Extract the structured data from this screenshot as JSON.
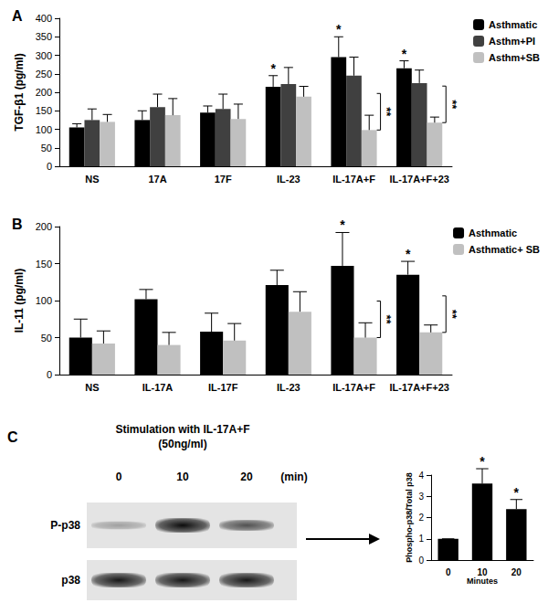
{
  "chart_data": [
    {
      "type": "bar",
      "title": "A",
      "categories": [
        "NS",
        "17A",
        "17F",
        "IL-23",
        "IL-17A+F",
        "IL-17A+F+23"
      ],
      "y_label": "TGF-β1 (pg/ml)",
      "ylim": [
        0,
        400
      ],
      "yticks": [
        0,
        50,
        100,
        150,
        200,
        250,
        300,
        350,
        400
      ],
      "grid": false,
      "legend": "upper right",
      "series": [
        {
          "name": "Asthmatic",
          "color": "#000000",
          "values": [
            105,
            125,
            145,
            215,
            295,
            265
          ],
          "errors": [
            10,
            25,
            18,
            30,
            55,
            20
          ]
        },
        {
          "name": "Asthm+PI",
          "color": "#404040",
          "values": [
            125,
            160,
            155,
            222,
            245,
            225
          ],
          "errors": [
            30,
            35,
            40,
            45,
            50,
            35
          ]
        },
        {
          "name": "Asthm+SB",
          "color": "#c0c0c0",
          "values": [
            120,
            138,
            128,
            188,
            98,
            118
          ],
          "errors": [
            20,
            45,
            40,
            28,
            40,
            15
          ]
        }
      ],
      "annotations": [
        {
          "text": "*",
          "series": "Asthmatic",
          "category": "IL-23"
        },
        {
          "text": "*",
          "series": "Asthmatic",
          "category": "IL-17A+F"
        },
        {
          "text": "*",
          "series": "Asthmatic",
          "category": "IL-17A+F+23"
        },
        {
          "text": "**",
          "from": "Asthmatic",
          "to": "Asthm+SB",
          "category": "IL-17A+F"
        },
        {
          "text": "**",
          "from": "Asthmatic",
          "to": "Asthm+SB",
          "category": "IL-17A+F+23"
        }
      ]
    },
    {
      "type": "bar",
      "title": "B",
      "categories": [
        "NS",
        "IL-17A",
        "IL-17F",
        "IL-23",
        "IL-17A+F",
        "IL-17A+F+23"
      ],
      "y_label": "IL-11 (pg/ml)",
      "ylim": [
        0,
        200
      ],
      "yticks": [
        0,
        50,
        100,
        150,
        200
      ],
      "grid": false,
      "legend": "upper right",
      "series": [
        {
          "name": "Asthmatic",
          "color": "#000000",
          "values": [
            50,
            102,
            58,
            121,
            147,
            135
          ],
          "errors": [
            25,
            13,
            25,
            20,
            45,
            18
          ]
        },
        {
          "name": "Asthmatic+ SB",
          "color": "#c0c0c0",
          "values": [
            42,
            40,
            46,
            85,
            50,
            57
          ],
          "errors": [
            17,
            17,
            23,
            27,
            20,
            10
          ]
        }
      ],
      "annotations": [
        {
          "text": "*",
          "series": "Asthmatic",
          "category": "IL-17A+F"
        },
        {
          "text": "*",
          "series": "Asthmatic",
          "category": "IL-17A+F+23"
        },
        {
          "text": "**",
          "from": "Asthmatic",
          "to": "Asthmatic+ SB",
          "category": "IL-17A+F"
        },
        {
          "text": "**",
          "from": "Asthmatic",
          "to": "Asthmatic+ SB",
          "category": "IL-17A+F+23"
        }
      ]
    },
    {
      "type": "bar",
      "categories": [
        "0",
        "10",
        "20"
      ],
      "x_label": "Minutes",
      "y_label": "Phospho-p38/Total p38",
      "ylim": [
        0,
        4
      ],
      "yticks": [
        0,
        1,
        2,
        3,
        4
      ],
      "grid": false,
      "color": "#000000",
      "values": [
        1,
        3.6,
        2.4
      ],
      "errors": [
        0,
        0.7,
        0.45
      ],
      "annotations": [
        {
          "text": "*",
          "category": "10"
        },
        {
          "text": "*",
          "category": "20"
        }
      ]
    }
  ],
  "blot": {
    "panel": "C",
    "title": [
      "Stimulation with IL-17A+F",
      "(50ng/ml)"
    ],
    "lanes": [
      "0",
      "10",
      "20"
    ],
    "lane_unit": "(min)",
    "rows": [
      "P-p38",
      "p38"
    ]
  }
}
